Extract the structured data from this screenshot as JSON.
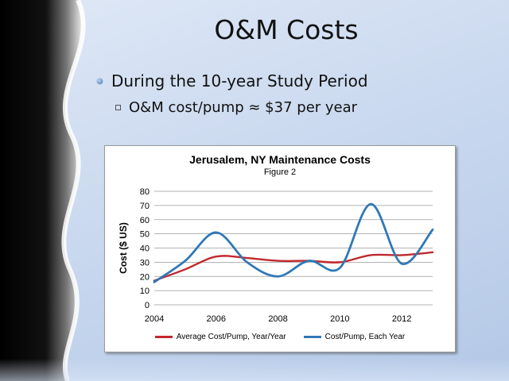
{
  "slide": {
    "title": "O&M Costs",
    "bullet1": "During the 10-year Study Period",
    "bullet2": "O&M cost/pump ≈ $37 per year"
  },
  "chart_data": {
    "type": "line",
    "title": "Jerusalem, NY Maintenance Costs",
    "subtitle": "Figure 2",
    "ylabel": "Cost ($ US)",
    "xlabel": "",
    "xlim": [
      2004,
      2013
    ],
    "ylim": [
      0,
      80
    ],
    "xticks": [
      2004,
      2006,
      2008,
      2010,
      2012
    ],
    "yticks": [
      0,
      10,
      20,
      30,
      40,
      50,
      60,
      70,
      80
    ],
    "grid": true,
    "legend_position": "bottom",
    "series": [
      {
        "name": "Average Cost/Pump, Year/Year",
        "color": "#c0282d",
        "x": [
          2004,
          2005,
          2006,
          2007,
          2008,
          2009,
          2010,
          2011,
          2012,
          2013
        ],
        "values": [
          17,
          25,
          34,
          33,
          31,
          31,
          30,
          35,
          35,
          37
        ]
      },
      {
        "name": "Cost/Pump, Each Year",
        "color": "#2f78b7",
        "x": [
          2004,
          2005,
          2006,
          2007,
          2008,
          2009,
          2010,
          2011,
          2012,
          2013
        ],
        "values": [
          16,
          31,
          51,
          30,
          20,
          31,
          26,
          71,
          29,
          53
        ]
      }
    ]
  }
}
